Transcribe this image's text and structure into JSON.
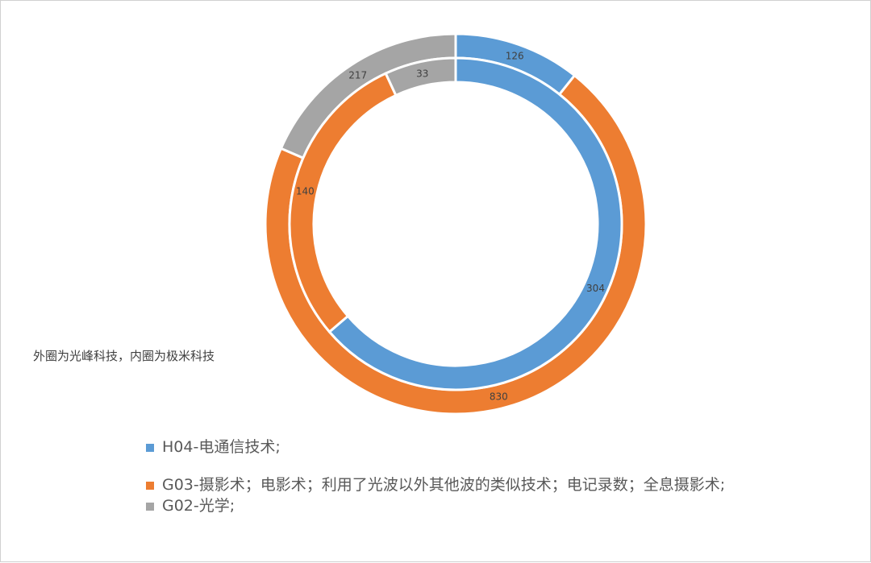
{
  "note": "外圈为光峰科技，内圈为极米科技",
  "colors": {
    "H04": "#5B9BD5",
    "G03": "#ED7D31",
    "G02": "#A5A5A5"
  },
  "chart_data": {
    "type": "donut",
    "legend_position": "bottom",
    "categories": [
      "H04-电通信技术;",
      "G03-摄影术；电影术；利用了光波以外其他波的类似技术；电记录数；全息摄影术;",
      "G02-光学;"
    ],
    "series": [
      {
        "ring": "outer",
        "values": [
          126,
          830,
          217
        ]
      },
      {
        "ring": "inner",
        "values": [
          304,
          140,
          33
        ]
      }
    ]
  }
}
